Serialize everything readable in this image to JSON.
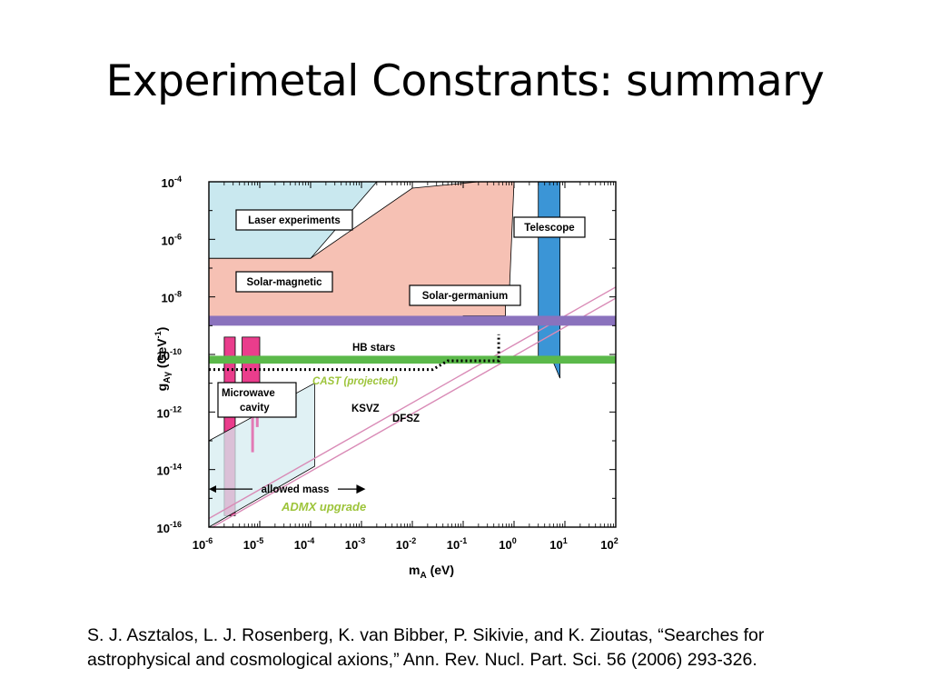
{
  "slide": {
    "title": "Experimetal Constrants: summary",
    "citation_line1": "S. J. Asztalos, L. J. Rosenberg, K. van Bibber, P. Sikivie, and K. Zioutas, “Searches for",
    "citation_line2": "astrophysical and cosmological axions,” Ann. Rev. Nucl. Part. Sci. 56 (2006) 293-326."
  },
  "chart_data": {
    "type": "exclusion-plot",
    "xlabel": "m",
    "xlabel_sub": "A",
    "xlabel_unit": " (eV)",
    "ylabel": "g",
    "ylabel_sub": "Aγ",
    "ylabel_unit": " (GeV",
    "x_scale": "log",
    "y_scale": "log",
    "xlim": [
      1e-06,
      100
    ],
    "ylim": [
      1e-16,
      0.0001
    ],
    "x_ticks": [
      {
        "value": 1e-06,
        "base": "10",
        "exp": "-6"
      },
      {
        "value": 1e-05,
        "base": "10",
        "exp": "-5"
      },
      {
        "value": 0.0001,
        "base": "10",
        "exp": "-4"
      },
      {
        "value": 0.001,
        "base": "10",
        "exp": "-3"
      },
      {
        "value": 0.01,
        "base": "10",
        "exp": "-2"
      },
      {
        "value": 0.1,
        "base": "10",
        "exp": "-1"
      },
      {
        "value": 1,
        "base": "10",
        "exp": "0"
      },
      {
        "value": 10,
        "base": "10",
        "exp": "1"
      },
      {
        "value": 100,
        "base": "10",
        "exp": "2"
      }
    ],
    "y_ticks": [
      {
        "value": 1e-16,
        "base": "10",
        "exp": "-16"
      },
      {
        "value": 1e-14,
        "base": "10",
        "exp": "-14"
      },
      {
        "value": 1e-12,
        "base": "10",
        "exp": "-12"
      },
      {
        "value": 1e-10,
        "base": "10",
        "exp": "-10"
      },
      {
        "value": 1e-08,
        "base": "10",
        "exp": "-8"
      },
      {
        "value": 1e-06,
        "base": "10",
        "exp": "-6"
      },
      {
        "value": 0.0001,
        "base": "10",
        "exp": "-4"
      }
    ],
    "regions": [
      {
        "name": "Solar-magnetic",
        "color": "#f6c1b4",
        "points": [
          [
            1e-06,
            2.2e-07
          ],
          [
            0.0001,
            2.2e-07
          ],
          [
            0.01,
            6e-05
          ],
          [
            0.2,
            0.0001
          ],
          [
            1,
            0.0001
          ],
          [
            0.8,
            1e-08
          ],
          [
            0.68,
            1e-08
          ],
          [
            0.68,
            2.2e-09
          ],
          [
            0.1,
            2.2e-09
          ],
          [
            0.08,
            1.6e-09
          ],
          [
            1e-06,
            1.6e-09
          ]
        ]
      },
      {
        "name": "Laser experiments",
        "color": "#c9e8ef",
        "points": [
          [
            1e-06,
            0.0001
          ],
          [
            0.002,
            0.0001
          ],
          [
            0.0001,
            2.2e-07
          ],
          [
            1e-06,
            2.2e-07
          ]
        ]
      },
      {
        "name": "Microwave cavity",
        "color": "#ea3d8c",
        "points": [
          [
            2e-06,
            4e-10
          ],
          [
            3.3e-06,
            4e-10
          ],
          [
            3.3e-06,
            2.5e-16
          ],
          [
            2e-06,
            2.5e-16
          ]
        ]
      },
      {
        "name": "Microwave cavity",
        "color": "#ea3d8c",
        "points": [
          [
            4.5e-06,
            4e-10
          ],
          [
            1e-05,
            4e-10
          ],
          [
            1e-05,
            1e-11
          ],
          [
            4.5e-06,
            1e-11
          ]
        ]
      },
      {
        "name": "ADMX upgrade",
        "color": "#d6ecf0",
        "points": [
          [
            1e-06,
            1e-13
          ],
          [
            0.00012,
            1e-11
          ],
          [
            0.00012,
            1.3e-14
          ],
          [
            1e-06,
            1e-16
          ]
        ]
      },
      {
        "name": "Telescope",
        "color": "#3b95d6",
        "points": [
          [
            3,
            0.0001
          ],
          [
            8,
            0.0001
          ],
          [
            8,
            1.5e-11
          ],
          [
            6,
            5e-11
          ],
          [
            3,
            5e-11
          ]
        ]
      }
    ],
    "bands": [
      {
        "name": "Solar-germanium",
        "color": "#8a72bd",
        "y": [
          1e-09,
          2.2e-09
        ]
      },
      {
        "name": "HB stars",
        "color": "#5bb94a",
        "y": [
          4.8e-11,
          9e-11
        ]
      }
    ],
    "lines": [
      {
        "name": "KSVZ",
        "color": "#d98ab6",
        "points": [
          [
            1e-06,
            2e-16
          ],
          [
            100,
            2.2e-08
          ]
        ]
      },
      {
        "name": "DFSZ",
        "color": "#d98ab6",
        "points": [
          [
            1e-06,
            8.5e-17
          ],
          [
            100,
            9e-09
          ]
        ]
      }
    ],
    "cast_projected": {
      "name": "CAST (projected)",
      "points": [
        [
          1e-06,
          3e-11
        ],
        [
          0.025,
          3e-11
        ],
        [
          0.05,
          6e-11
        ],
        [
          0.5,
          6e-11
        ],
        [
          0.5,
          5e-10
        ]
      ]
    },
    "allowed_mass": {
      "label": "allowed mass",
      "x": [
        1e-06,
        0.0012
      ],
      "y": 2.1e-15
    },
    "labels": [
      {
        "text": "Laser experiments",
        "boxed": true
      },
      {
        "text": "Solar-magnetic",
        "boxed": true
      },
      {
        "text": "Solar-germanium",
        "boxed": true
      },
      {
        "text": "Telescope",
        "boxed": true
      },
      {
        "text": "HB stars",
        "boxed": false
      },
      {
        "text": "CAST (projected)",
        "boxed": false,
        "color": "#9dc43a",
        "italic": true
      },
      {
        "text": "Microwave",
        "boxed": true
      },
      {
        "text": "cavity",
        "boxed": true
      },
      {
        "text": "KSVZ",
        "boxed": false
      },
      {
        "text": "DFSZ",
        "boxed": false
      },
      {
        "text": "ADMX upgrade",
        "boxed": false,
        "color": "#9dc43a",
        "italic": true
      }
    ]
  }
}
